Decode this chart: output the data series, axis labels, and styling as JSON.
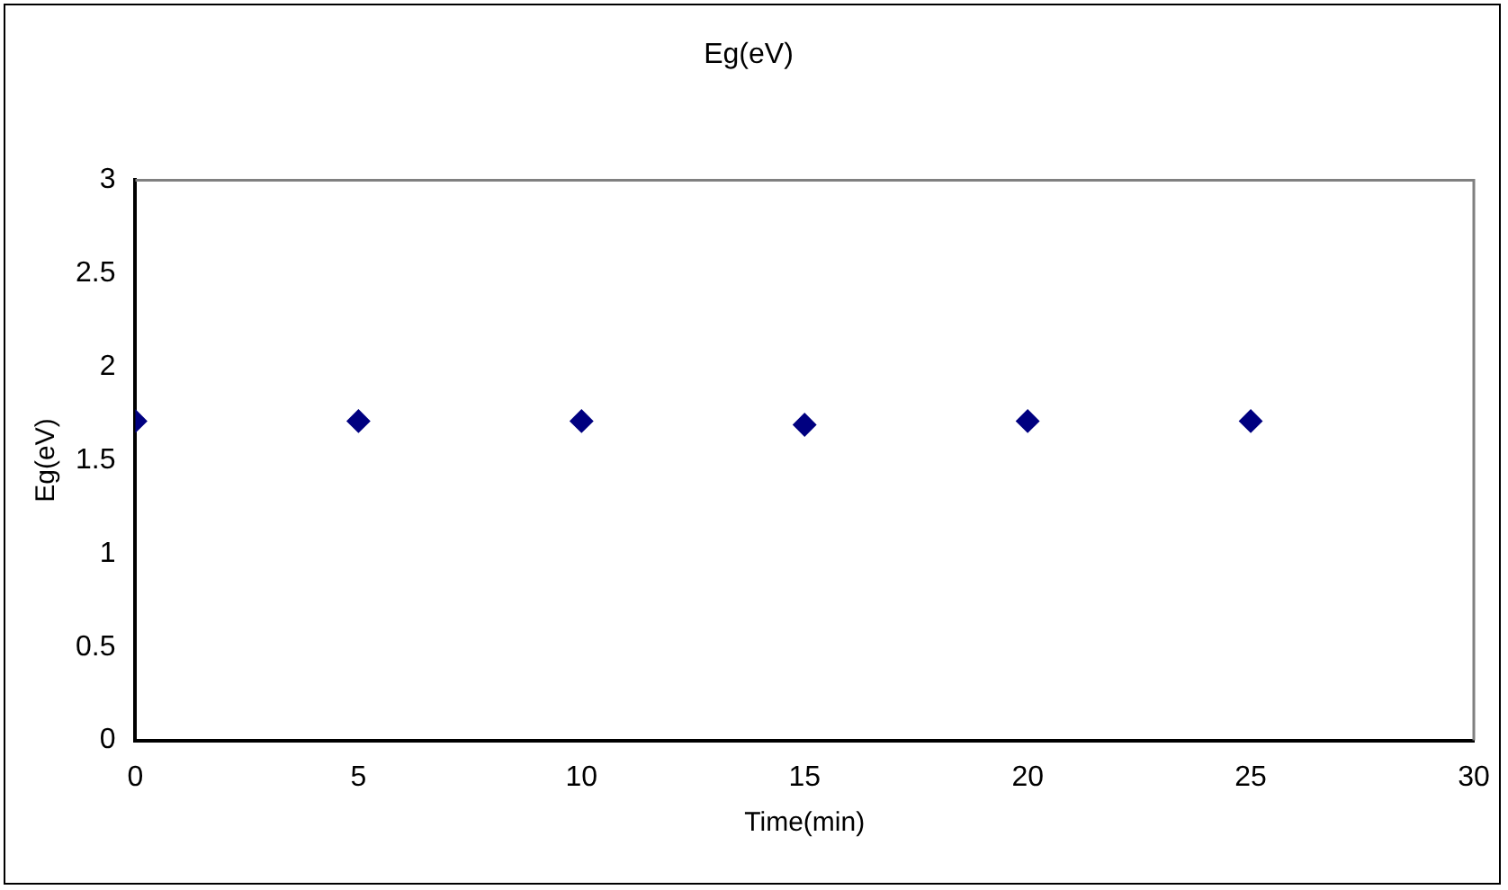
{
  "chart_data": {
    "type": "scatter",
    "title": "Eg(eV)",
    "xlabel": "Time(min)",
    "ylabel": "Eg(eV)",
    "x": [
      0,
      5,
      10,
      15,
      20,
      25
    ],
    "series": [
      {
        "color": "#000080",
        "values": [
          1.71,
          1.71,
          1.71,
          1.69,
          1.71,
          1.71
        ]
      }
    ],
    "xlim": [
      0,
      30
    ],
    "xticks": [
      0,
      5,
      10,
      15,
      20,
      25,
      30
    ],
    "ylim": [
      0,
      3
    ],
    "yticks": [
      0,
      0.5,
      1,
      1.5,
      2,
      2.5,
      3
    ],
    "grid": false,
    "legend": false,
    "marker": "diamond"
  }
}
